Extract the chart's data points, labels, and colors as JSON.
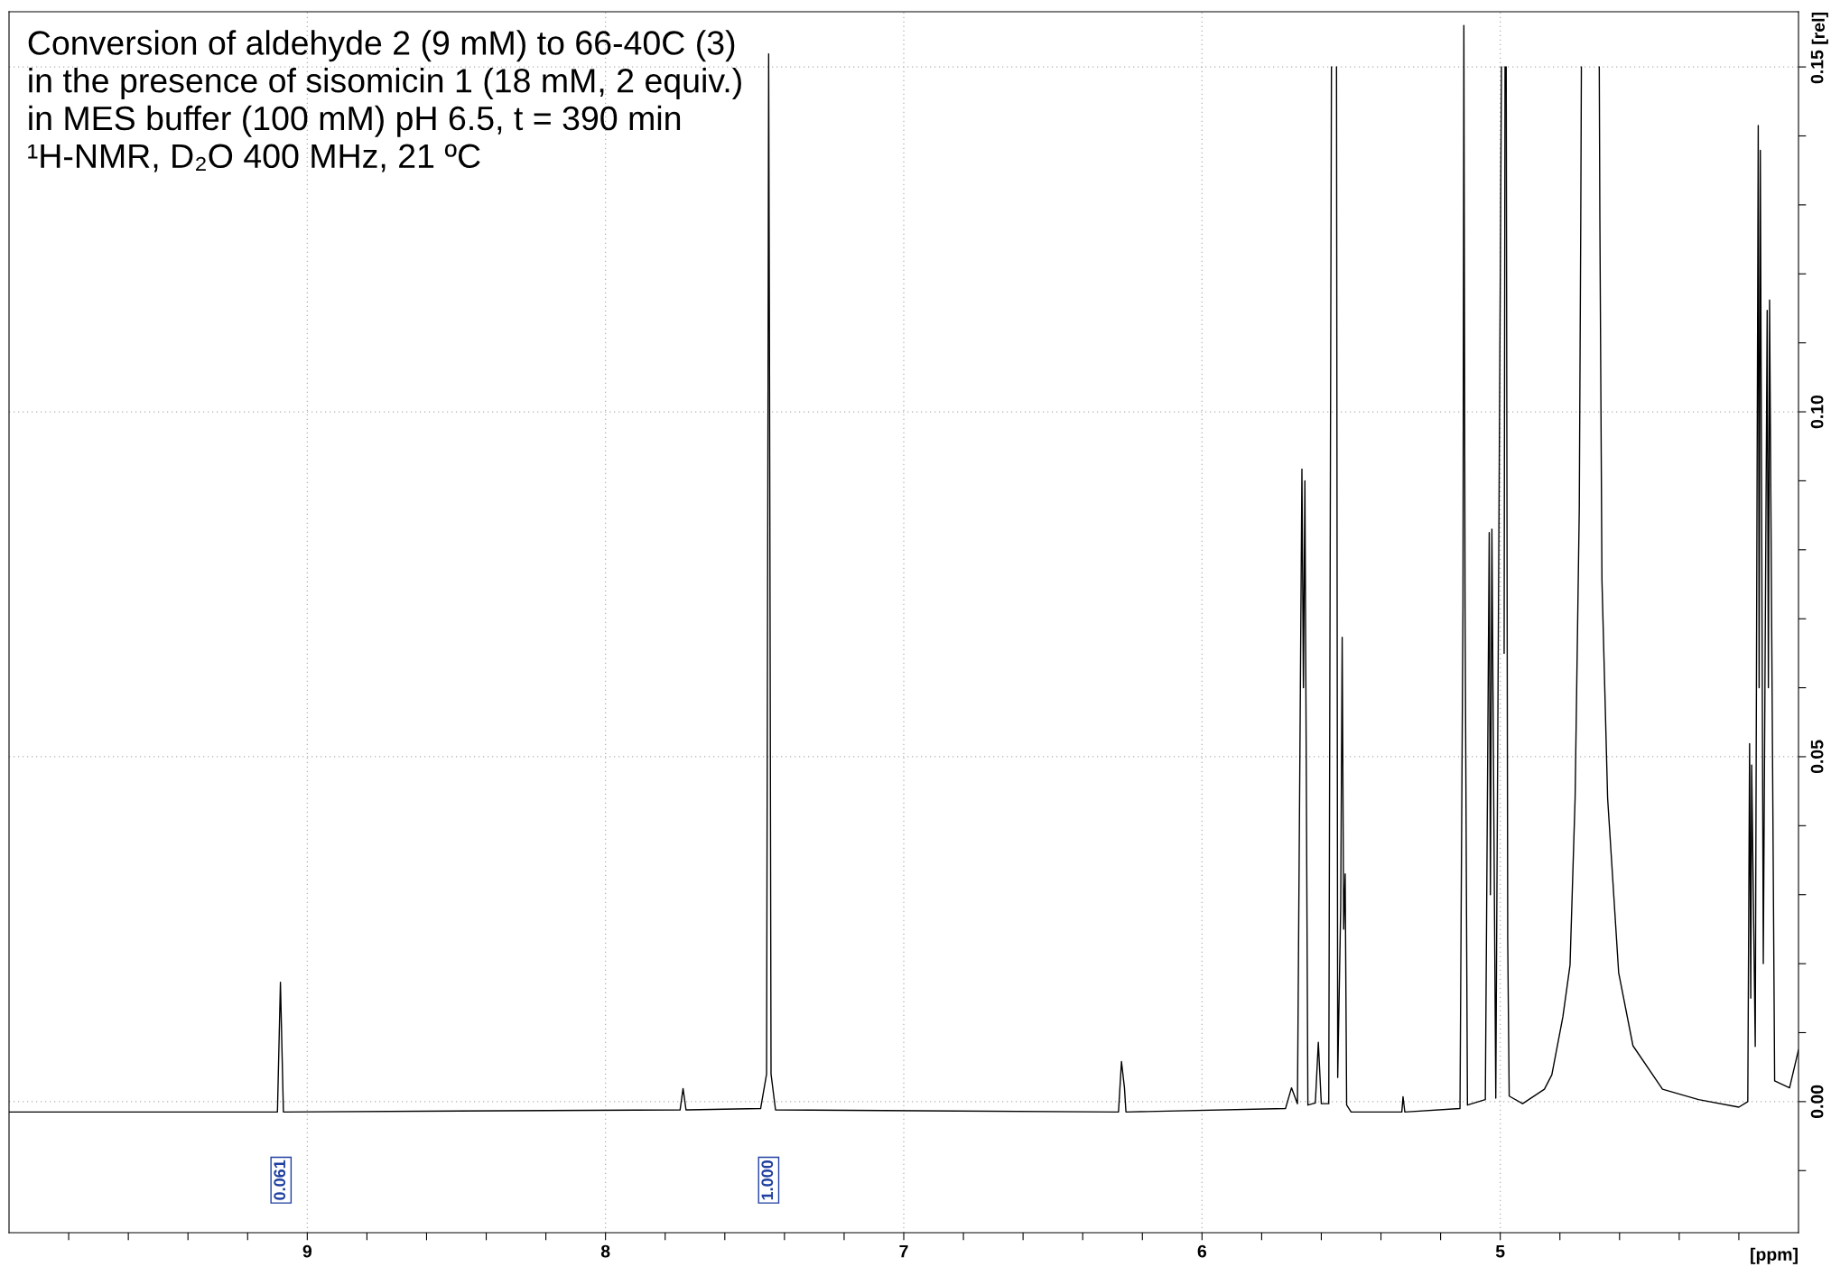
{
  "chart_data": {
    "type": "line",
    "title": "Conversion of aldehyde 2 (9 mM) to 66-40C (3)\nin the presence of sisomicin 1 (18 mM, 2 equiv.)\nin MES buffer (100 mM) pH 6.5, t = 390 min\n¹H-NMR, D₂O 400 MHz, 21 ºC",
    "xlabel": "[ppm]",
    "ylabel": "[rel]",
    "series": [
      {
        "color": "#000000",
        "x": [
          10.0,
          9.1,
          9.09,
          9.08,
          7.75,
          7.74,
          7.73,
          7.48,
          7.46,
          7.455,
          7.453,
          7.45,
          7.445,
          7.43,
          6.28,
          6.27,
          6.26,
          6.255,
          5.72,
          5.7,
          5.68,
          5.665,
          5.66,
          5.655,
          5.645,
          5.62,
          5.61,
          5.6,
          5.575,
          5.566,
          5.558,
          5.549,
          5.545,
          5.535,
          5.53,
          5.525,
          5.52,
          5.515,
          5.5,
          5.33,
          5.326,
          5.32,
          5.135,
          5.125,
          5.122,
          5.118,
          5.11,
          5.05,
          5.037,
          5.033,
          5.028,
          5.015,
          4.996,
          4.991,
          4.987,
          4.984,
          4.982,
          4.98,
          4.975,
          4.97,
          4.925,
          4.852,
          4.827,
          4.79,
          4.766,
          4.749,
          4.735,
          4.73,
          4.728,
          4.7,
          4.668,
          4.666,
          4.659,
          4.64,
          4.603,
          4.555,
          4.456,
          4.335,
          4.2,
          4.17,
          4.164,
          4.16,
          4.157,
          4.145,
          4.135,
          4.132,
          4.128,
          4.118,
          4.105,
          4.101,
          4.097,
          4.08,
          4.03,
          4.0
        ],
        "values": [
          -0.0015,
          -0.0015,
          0.0173,
          -0.0015,
          -0.0012,
          0.0019,
          -0.0012,
          -0.001,
          0.004,
          0.105,
          0.1519,
          0.105,
          0.004,
          -0.0012,
          -0.0015,
          0.0058,
          0.002,
          -0.0015,
          -0.001,
          0.002,
          -0.0003,
          0.0917,
          0.06,
          0.09,
          -0.0005,
          -0.0002,
          0.0086,
          -0.0003,
          -0.0003,
          0.15,
          null,
          0.15,
          0.0035,
          0.028,
          0.0673,
          0.025,
          0.033,
          -0.0005,
          -0.0015,
          -0.0015,
          0.0007,
          -0.0015,
          -0.001,
          0.0719,
          0.156,
          0.0719,
          -0.0005,
          0.0003,
          0.0825,
          0.03,
          0.083,
          0.0005,
          0.15,
          null,
          0.065,
          0.15,
          null,
          0.15,
          0.0234,
          0.0008,
          -0.0003,
          0.0018,
          0.0039,
          0.0123,
          0.0198,
          0.044,
          0.086,
          0.128,
          0.15,
          null,
          0.15,
          0.128,
          0.0756,
          0.044,
          0.0187,
          0.0081,
          0.0018,
          0.0003,
          -0.0008,
          0.0,
          0.0519,
          0.015,
          0.0488,
          0.008,
          0.1415,
          0.06,
          0.1379,
          0.02,
          0.1147,
          0.06,
          0.1162,
          0.003,
          0.002,
          0.0075
        ]
      }
    ],
    "xlim": [
      10.0,
      4.0
    ],
    "ylim": [
      -0.019,
      0.158
    ],
    "xticks": [
      {
        "value": 9.8,
        "label": null
      },
      {
        "value": 9.6,
        "label": null
      },
      {
        "value": 9.4,
        "label": null
      },
      {
        "value": 9.2,
        "label": null
      },
      9,
      {
        "value": 8.8,
        "label": null
      },
      {
        "value": 8.6,
        "label": null
      },
      {
        "value": 8.4,
        "label": null
      },
      {
        "value": 8.2,
        "label": null
      },
      8,
      {
        "value": 7.8,
        "label": null
      },
      {
        "value": 7.6,
        "label": null
      },
      {
        "value": 7.4,
        "label": null
      },
      {
        "value": 7.2,
        "label": null
      },
      7,
      {
        "value": 6.8,
        "label": null
      },
      {
        "value": 6.6,
        "label": null
      },
      {
        "value": 6.4,
        "label": null
      },
      {
        "value": 6.2,
        "label": null
      },
      6,
      {
        "value": 5.8,
        "label": null
      },
      {
        "value": 5.6,
        "label": null
      },
      {
        "value": 5.4,
        "label": null
      },
      {
        "value": 5.2,
        "label": null
      },
      5,
      {
        "value": 4.8,
        "label": null
      },
      {
        "value": 4.6,
        "label": null
      },
      {
        "value": 4.4,
        "label": null
      },
      {
        "value": 4.2,
        "label": null
      }
    ],
    "yticks": [
      {
        "value": -0.01,
        "label": null
      },
      {
        "value": 0,
        "label": "0.00"
      },
      {
        "value": 0.01,
        "label": null
      },
      {
        "value": 0.02,
        "label": null
      },
      {
        "value": 0.03,
        "label": null
      },
      {
        "value": 0.04,
        "label": null
      },
      {
        "value": 0.05,
        "label": "0.05"
      },
      {
        "value": 0.06,
        "label": null
      },
      {
        "value": 0.07,
        "label": null
      },
      {
        "value": 0.08,
        "label": null
      },
      {
        "value": 0.09,
        "label": null
      },
      {
        "value": 0.1,
        "label": "0.10"
      },
      {
        "value": 0.11,
        "label": null
      },
      {
        "value": 0.12,
        "label": null
      },
      {
        "value": 0.13,
        "label": null
      },
      {
        "value": 0.14,
        "label": null
      },
      {
        "value": 0.15,
        "label": "0.15"
      }
    ],
    "grid": true,
    "legend": false,
    "marker": "none",
    "line_style": "solid",
    "annotations": [
      "0.061",
      "1.000"
    ]
  }
}
